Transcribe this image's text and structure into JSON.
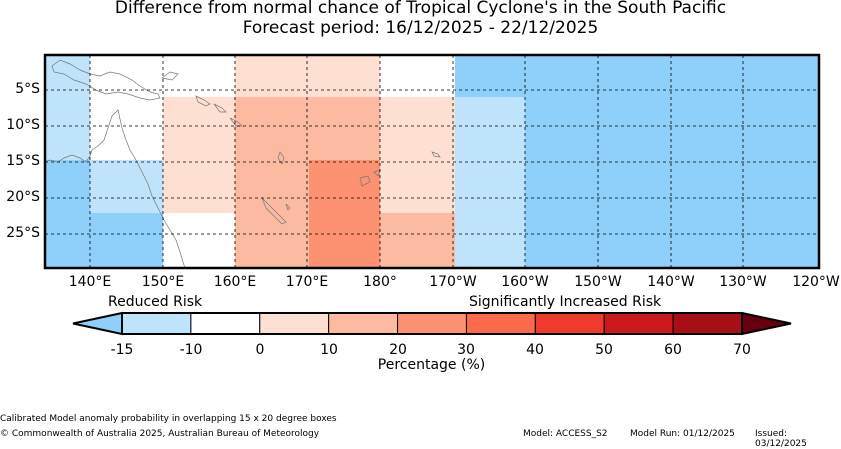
{
  "title": {
    "line1": "Difference from normal chance of Tropical Cyclone's in the South Pacific",
    "line2": "Forecast period: 16/12/2025 - 22/12/2025"
  },
  "map": {
    "lat_labels": [
      "5°S",
      "10°S",
      "15°S",
      "20°S",
      "25°S"
    ],
    "lon_labels": [
      "140°E",
      "150°E",
      "160°E",
      "170°E",
      "180°",
      "170°W",
      "160°W",
      "150°W",
      "140°W",
      "130°W",
      "120°W"
    ],
    "risk_grid_note": "Calibrated Model anomaly probability in overlapping 15 x 20 degree boxes"
  },
  "legend": {
    "reduced_label": "Reduced Risk",
    "increased_label": "Significantly Increased Risk",
    "ticks": [
      "-15",
      "-10",
      "0",
      "10",
      "20",
      "30",
      "40",
      "50",
      "60",
      "70"
    ],
    "title": "Percentage (%)",
    "colors": [
      "#bfe3fa",
      "#ffffff",
      "#fee0d2",
      "#fcbba1",
      "#fc9272",
      "#fb6a4a",
      "#ef3b2c",
      "#cb181d",
      "#a50f15"
    ],
    "under_color": "#8fd0fb",
    "over_color": "#67000d"
  },
  "footer": {
    "note": "Calibrated Model anomaly probability in overlapping 15 x 20 degree boxes",
    "copyright": "© Commonwealth of Australia 2025, Australian Bureau of Meteorology",
    "model": "Model: ACCESS_S2",
    "model_run": "Model Run: 01/12/2025",
    "issued": "Issued: 03/12/2025"
  },
  "colors": {
    "strong_reduced": "#8fd0fb",
    "reduced": "#bfe3fa",
    "neutral": "#ffffff",
    "slight_increase": "#fee0d2",
    "increase": "#fcbba1",
    "moderate_increase": "#fc9272"
  }
}
